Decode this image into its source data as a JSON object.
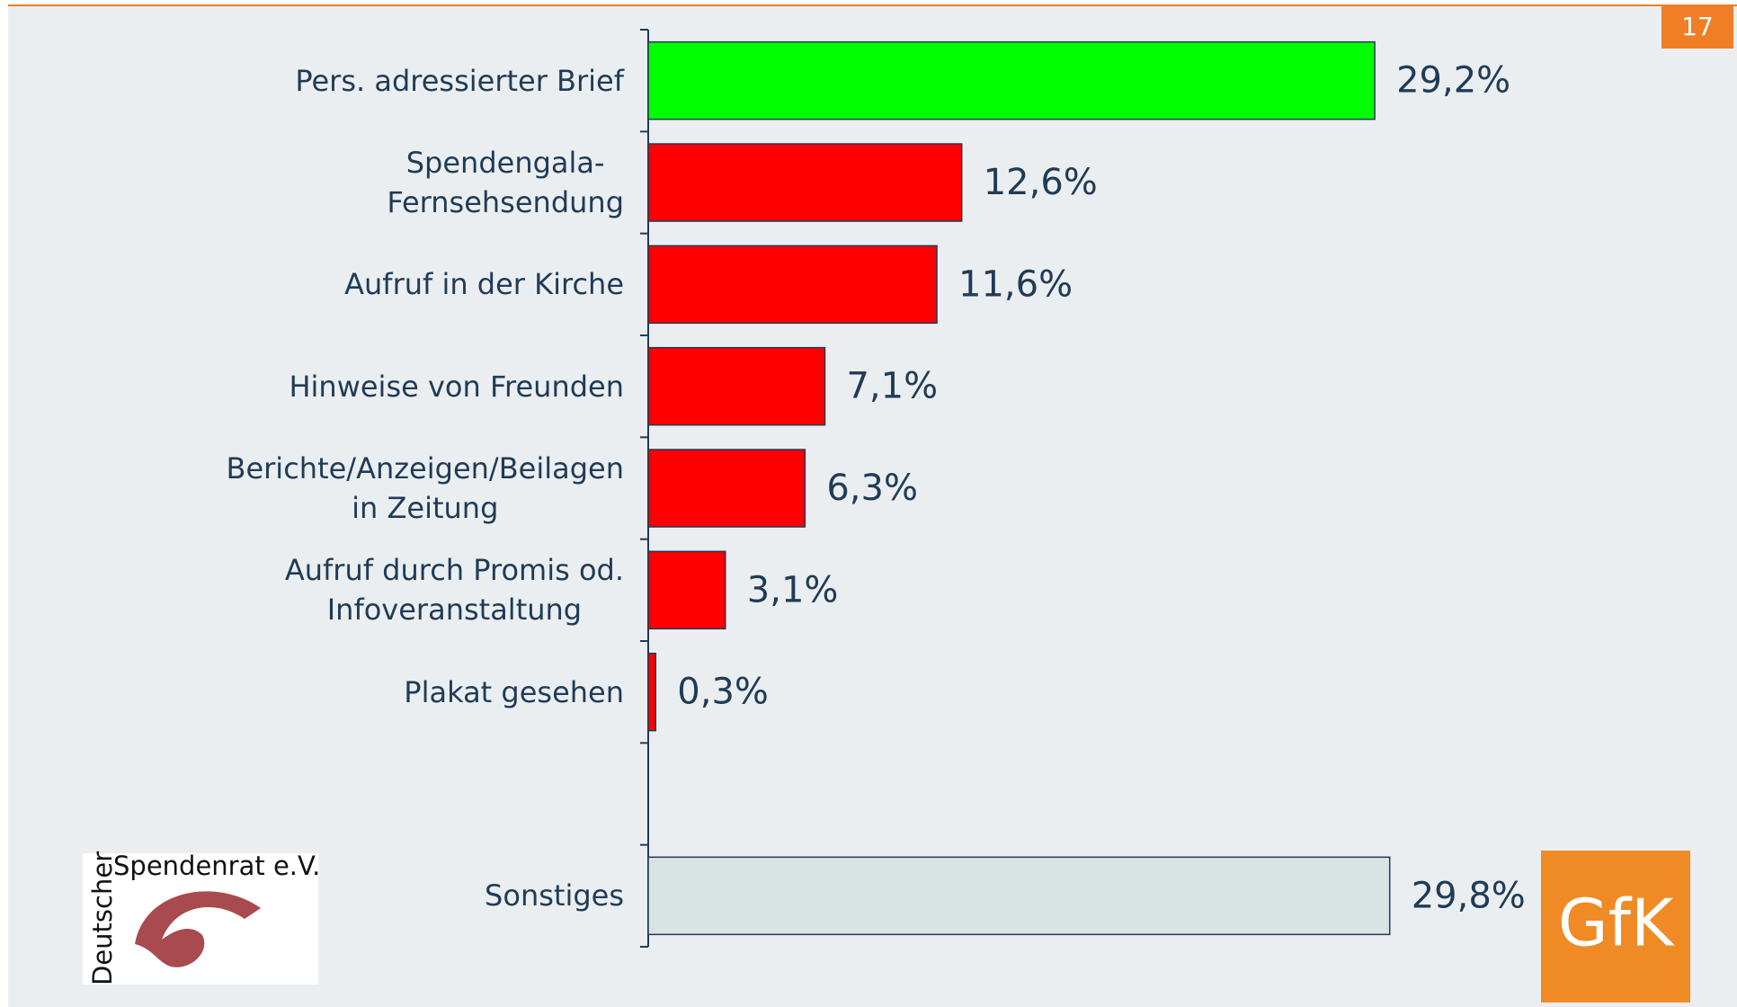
{
  "chart_data": {
    "type": "hbar",
    "categories": [
      "Pers. adressierter Brief",
      "Spendengala-\nFernsehsendung",
      "Aufruf in der Kirche",
      "Hinweise von Freunden",
      "Berichte/Anzeigen/Beilagen\nin Zeitung",
      "Aufruf durch Promis od.\nInfoveranstaltung",
      "Plakat gesehen",
      null,
      "Sonstiges"
    ],
    "values": [
      29.2,
      12.6,
      11.6,
      7.1,
      6.3,
      3.1,
      0.3,
      null,
      29.8
    ],
    "value_labels": [
      "29,2%",
      "12,6%",
      "11,6%",
      "7,1%",
      "6,3%",
      "3,1%",
      "0,3%",
      null,
      "29,8%"
    ],
    "colors": [
      "#00ff00",
      "#ff0000",
      "#ff0000",
      "#ff0000",
      "#ff0000",
      "#ff0000",
      "#ff0000",
      null,
      "#dae3e3"
    ],
    "xlim": [
      0,
      40
    ]
  },
  "page_number": "17",
  "logo_left": {
    "line1": "Deutscher",
    "line2": "Spendenrat e.V."
  },
  "logo_right": "GfK"
}
